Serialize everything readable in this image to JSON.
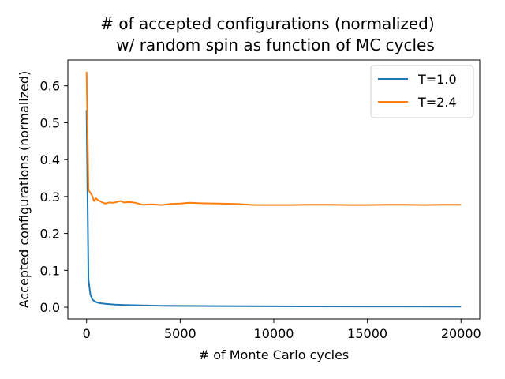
{
  "chart_data": {
    "type": "line",
    "title_line1": "# of accepted configurations (normalized)",
    "title_line2": "w/ random spin as function of MC cycles",
    "xlabel": "# of Monte Carlo cycles",
    "ylabel": "Accepted configurations (normalized)",
    "xlim": [
      -1000,
      21000
    ],
    "ylim": [
      -0.032,
      0.67
    ],
    "x_ticks": [
      0,
      5000,
      10000,
      15000,
      20000
    ],
    "y_ticks": [
      0.0,
      0.1,
      0.2,
      0.3,
      0.4,
      0.5,
      0.6
    ],
    "x_tick_labels": [
      "0",
      "5000",
      "10000",
      "15000",
      "20000"
    ],
    "y_tick_labels": [
      "0.0",
      "0.1",
      "0.2",
      "0.3",
      "0.4",
      "0.5",
      "0.6"
    ],
    "grid": false,
    "legend_position": "top-right",
    "series": [
      {
        "name": "T=1.0",
        "color": "#1f77b4",
        "x": [
          0,
          100,
          200,
          300,
          400,
          500,
          700,
          1000,
          1500,
          2000,
          3000,
          4000,
          5000,
          7000,
          10000,
          15000,
          20000
        ],
        "y": [
          0.535,
          0.075,
          0.035,
          0.022,
          0.017,
          0.014,
          0.011,
          0.009,
          0.007,
          0.006,
          0.005,
          0.004,
          0.0035,
          0.003,
          0.0025,
          0.002,
          0.0017
        ]
      },
      {
        "name": "T=2.4",
        "color": "#ff7f0e",
        "x": [
          0,
          100,
          200,
          300,
          400,
          500,
          600,
          700,
          800,
          1000,
          1200,
          1400,
          1600,
          1800,
          2000,
          2300,
          2600,
          3000,
          3500,
          4000,
          4500,
          5000,
          5500,
          6000,
          7000,
          8000,
          9000,
          10000,
          11000,
          12000,
          13000,
          14000,
          15000,
          16000,
          17000,
          18000,
          19000,
          20000
        ],
        "y": [
          0.638,
          0.318,
          0.31,
          0.302,
          0.288,
          0.295,
          0.29,
          0.288,
          0.285,
          0.281,
          0.284,
          0.283,
          0.285,
          0.288,
          0.284,
          0.285,
          0.283,
          0.278,
          0.279,
          0.277,
          0.28,
          0.281,
          0.283,
          0.282,
          0.281,
          0.28,
          0.277,
          0.277,
          0.277,
          0.278,
          0.278,
          0.277,
          0.277,
          0.278,
          0.278,
          0.277,
          0.278,
          0.278
        ]
      }
    ]
  }
}
